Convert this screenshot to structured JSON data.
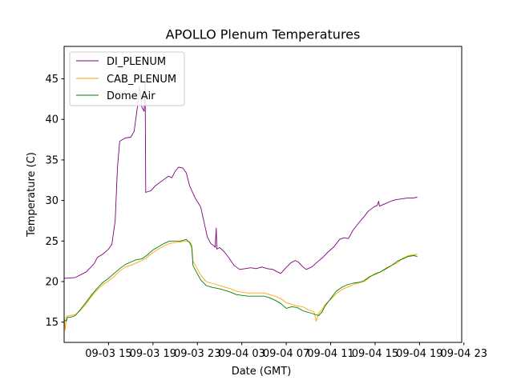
{
  "chart_data": {
    "type": "line",
    "title": "APOLLO Plenum Temperatures",
    "xlabel": "Date (GMT)",
    "ylabel": "Temperature (C)",
    "xlim": [
      0,
      35.8
    ],
    "ylim": [
      12.5,
      49
    ],
    "yticks": [
      15,
      20,
      25,
      30,
      35,
      40,
      45
    ],
    "xticks": [
      {
        "x": 4,
        "label": "09-03 15"
      },
      {
        "x": 8,
        "label": "09-03 19"
      },
      {
        "x": 12,
        "label": "09-03 23"
      },
      {
        "x": 16,
        "label": "09-04 03"
      },
      {
        "x": 20,
        "label": "09-04 07"
      },
      {
        "x": 24,
        "label": "09-04 11"
      },
      {
        "x": 28,
        "label": "09-04 15"
      },
      {
        "x": 32,
        "label": "09-04 19"
      },
      {
        "x": 36,
        "label": "09-04 23"
      }
    ],
    "legend_position": "top-left",
    "series": [
      {
        "name": "DI_PLENUM",
        "color": "#800080",
        "points": [
          [
            0,
            20.4
          ],
          [
            1,
            20.5
          ],
          [
            2,
            21.2
          ],
          [
            2.7,
            22.2
          ],
          [
            3,
            23.0
          ],
          [
            3.5,
            23.4
          ],
          [
            4,
            24.0
          ],
          [
            4.3,
            24.6
          ],
          [
            4.6,
            27.5
          ],
          [
            4.8,
            34.0
          ],
          [
            5,
            37.3
          ],
          [
            5.5,
            37.7
          ],
          [
            6,
            37.8
          ],
          [
            6.3,
            38.5
          ],
          [
            6.6,
            41.5
          ],
          [
            6.8,
            44.0
          ],
          [
            7,
            41.5
          ],
          [
            7.2,
            41.0
          ],
          [
            7.3,
            44.5
          ],
          [
            7.35,
            31.0
          ],
          [
            7.8,
            31.2
          ],
          [
            8.2,
            31.8
          ],
          [
            8.6,
            32.2
          ],
          [
            9,
            32.6
          ],
          [
            9.4,
            33.0
          ],
          [
            9.7,
            32.8
          ],
          [
            10,
            33.6
          ],
          [
            10.3,
            34.1
          ],
          [
            10.7,
            34.0
          ],
          [
            11,
            33.4
          ],
          [
            11.3,
            31.8
          ],
          [
            11.8,
            30.3
          ],
          [
            12.3,
            29.2
          ],
          [
            12.6,
            27.3
          ],
          [
            12.9,
            25.5
          ],
          [
            13.2,
            24.7
          ],
          [
            13.5,
            24.4
          ],
          [
            13.6,
            24.2
          ],
          [
            13.7,
            26.6
          ],
          [
            13.75,
            24.0
          ],
          [
            14,
            24.2
          ],
          [
            14.4,
            23.7
          ],
          [
            14.8,
            23.0
          ],
          [
            15.3,
            22.0
          ],
          [
            15.8,
            21.5
          ],
          [
            16.3,
            21.6
          ],
          [
            16.8,
            21.7
          ],
          [
            17.3,
            21.6
          ],
          [
            17.8,
            21.8
          ],
          [
            18.3,
            21.6
          ],
          [
            18.8,
            21.5
          ],
          [
            19.2,
            21.2
          ],
          [
            19.5,
            21.0
          ],
          [
            19.9,
            21.6
          ],
          [
            20.4,
            22.3
          ],
          [
            20.8,
            22.6
          ],
          [
            21.1,
            22.4
          ],
          [
            21.5,
            21.8
          ],
          [
            21.8,
            21.5
          ],
          [
            22.3,
            21.8
          ],
          [
            22.8,
            22.4
          ],
          [
            23.3,
            23.0
          ],
          [
            23.8,
            23.7
          ],
          [
            24.3,
            24.3
          ],
          [
            24.8,
            25.2
          ],
          [
            25.2,
            25.4
          ],
          [
            25.6,
            25.3
          ],
          [
            26,
            26.3
          ],
          [
            26.5,
            27.2
          ],
          [
            27,
            28.0
          ],
          [
            27.4,
            28.7
          ],
          [
            27.9,
            29.2
          ],
          [
            28.2,
            29.4
          ],
          [
            28.32,
            29.9
          ],
          [
            28.4,
            29.3
          ],
          [
            28.9,
            29.6
          ],
          [
            29.4,
            29.9
          ],
          [
            29.9,
            30.1
          ],
          [
            30.4,
            30.2
          ],
          [
            30.9,
            30.3
          ],
          [
            31.4,
            30.3
          ],
          [
            31.8,
            30.4
          ]
        ]
      },
      {
        "name": "CAB_PLENUM",
        "color": "#FFA500",
        "points": [
          [
            0,
            15.8
          ],
          [
            0.1,
            14.0
          ],
          [
            0.2,
            15.7
          ],
          [
            0.5,
            15.8
          ],
          [
            1,
            15.9
          ],
          [
            1.5,
            16.5
          ],
          [
            2,
            17.3
          ],
          [
            2.5,
            18.2
          ],
          [
            3,
            19.0
          ],
          [
            3.5,
            19.6
          ],
          [
            4,
            20.1
          ],
          [
            4.5,
            20.6
          ],
          [
            5,
            21.3
          ],
          [
            5.5,
            21.8
          ],
          [
            6,
            22.0
          ],
          [
            6.5,
            22.3
          ],
          [
            7,
            22.6
          ],
          [
            7.5,
            23.0
          ],
          [
            8,
            23.6
          ],
          [
            8.5,
            24.0
          ],
          [
            9,
            24.4
          ],
          [
            9.5,
            24.7
          ],
          [
            10,
            24.8
          ],
          [
            10.5,
            24.9
          ],
          [
            11,
            25.0
          ],
          [
            11.3,
            24.9
          ],
          [
            11.5,
            24.5
          ],
          [
            11.6,
            22.5
          ],
          [
            11.9,
            21.8
          ],
          [
            12.3,
            20.8
          ],
          [
            12.8,
            20.0
          ],
          [
            13.3,
            19.8
          ],
          [
            14,
            19.5
          ],
          [
            14.5,
            19.3
          ],
          [
            15,
            19.1
          ],
          [
            15.5,
            18.8
          ],
          [
            16,
            18.7
          ],
          [
            16.5,
            18.6
          ],
          [
            17,
            18.6
          ],
          [
            17.5,
            18.6
          ],
          [
            18,
            18.6
          ],
          [
            18.5,
            18.4
          ],
          [
            19,
            18.2
          ],
          [
            19.5,
            17.9
          ],
          [
            20,
            17.4
          ],
          [
            20.5,
            17.2
          ],
          [
            21,
            17.0
          ],
          [
            21.5,
            16.9
          ],
          [
            22,
            16.5
          ],
          [
            22.5,
            16.3
          ],
          [
            22.7,
            15.1
          ],
          [
            22.9,
            16.1
          ],
          [
            23.2,
            16.5
          ],
          [
            23.5,
            17.2
          ],
          [
            24,
            17.8
          ],
          [
            24.5,
            18.5
          ],
          [
            25,
            19.0
          ],
          [
            25.5,
            19.3
          ],
          [
            26,
            19.6
          ],
          [
            26.5,
            19.8
          ],
          [
            27,
            20.0
          ],
          [
            27.5,
            20.5
          ],
          [
            28,
            21.0
          ],
          [
            28.5,
            21.2
          ],
          [
            29,
            21.7
          ],
          [
            29.5,
            22.0
          ],
          [
            30,
            22.3
          ],
          [
            30.5,
            22.9
          ],
          [
            31,
            23.2
          ],
          [
            31.5,
            23.3
          ],
          [
            31.8,
            23.4
          ]
        ]
      },
      {
        "name": "Dome Air",
        "color": "#008000",
        "points": [
          [
            0,
            15.3
          ],
          [
            0.2,
            15.1
          ],
          [
            0.3,
            15.6
          ],
          [
            0.6,
            15.6
          ],
          [
            1,
            15.8
          ],
          [
            1.5,
            16.6
          ],
          [
            2,
            17.5
          ],
          [
            2.5,
            18.4
          ],
          [
            3,
            19.2
          ],
          [
            3.5,
            19.9
          ],
          [
            4,
            20.4
          ],
          [
            4.5,
            21.0
          ],
          [
            5,
            21.6
          ],
          [
            5.5,
            22.1
          ],
          [
            6,
            22.4
          ],
          [
            6.5,
            22.7
          ],
          [
            7,
            22.8
          ],
          [
            7.5,
            23.3
          ],
          [
            8,
            23.9
          ],
          [
            8.5,
            24.3
          ],
          [
            9,
            24.7
          ],
          [
            9.5,
            25.0
          ],
          [
            10,
            25.0
          ],
          [
            10.5,
            25.0
          ],
          [
            11,
            25.2
          ],
          [
            11.3,
            24.8
          ],
          [
            11.5,
            24.2
          ],
          [
            11.6,
            22.0
          ],
          [
            11.9,
            21.2
          ],
          [
            12.3,
            20.2
          ],
          [
            12.8,
            19.5
          ],
          [
            13.3,
            19.3
          ],
          [
            14,
            19.1
          ],
          [
            14.5,
            18.9
          ],
          [
            15,
            18.7
          ],
          [
            15.5,
            18.4
          ],
          [
            16,
            18.3
          ],
          [
            16.5,
            18.2
          ],
          [
            17,
            18.2
          ],
          [
            17.5,
            18.2
          ],
          [
            18,
            18.2
          ],
          [
            18.5,
            18.0
          ],
          [
            19,
            17.7
          ],
          [
            19.5,
            17.3
          ],
          [
            20,
            16.7
          ],
          [
            20.5,
            16.9
          ],
          [
            21,
            16.8
          ],
          [
            21.5,
            16.4
          ],
          [
            22,
            16.2
          ],
          [
            22.5,
            16.0
          ],
          [
            22.9,
            15.8
          ],
          [
            23.2,
            16.2
          ],
          [
            23.5,
            17.0
          ],
          [
            24,
            17.9
          ],
          [
            24.5,
            18.8
          ],
          [
            25,
            19.3
          ],
          [
            25.5,
            19.6
          ],
          [
            26,
            19.8
          ],
          [
            26.5,
            19.9
          ],
          [
            27,
            20.1
          ],
          [
            27.5,
            20.6
          ],
          [
            28,
            20.9
          ],
          [
            28.5,
            21.2
          ],
          [
            29,
            21.6
          ],
          [
            29.5,
            22.0
          ],
          [
            30,
            22.5
          ],
          [
            30.5,
            22.8
          ],
          [
            31,
            23.1
          ],
          [
            31.5,
            23.2
          ],
          [
            31.8,
            23.1
          ]
        ]
      }
    ]
  }
}
